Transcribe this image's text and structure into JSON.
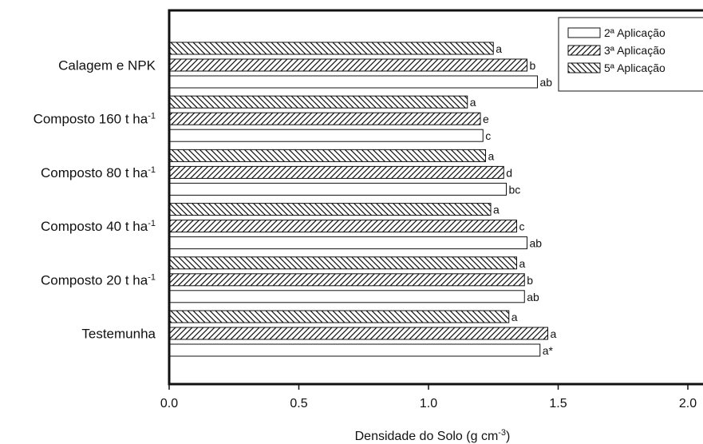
{
  "chart_data": {
    "type": "bar",
    "orientation": "horizontal",
    "categories": [
      {
        "text": "Calagem e NPK",
        "sup": ""
      },
      {
        "text": "Composto 160 t ha",
        "sup": "-1"
      },
      {
        "text": "Composto 80 t ha",
        "sup": "-1"
      },
      {
        "text": "Composto 40 t ha",
        "sup": "-1"
      },
      {
        "text": "Composto 20 t ha",
        "sup": "-1"
      },
      {
        "text": "Testemunha",
        "sup": ""
      }
    ],
    "series": [
      {
        "name": "5ª Aplicação",
        "pattern": "backslash",
        "values": [
          1.25,
          1.15,
          1.22,
          1.24,
          1.34,
          1.31
        ],
        "labels": [
          "a",
          "a",
          "a",
          "a",
          "a",
          "a"
        ]
      },
      {
        "name": "3ª Aplicação",
        "pattern": "slash",
        "values": [
          1.38,
          1.2,
          1.29,
          1.34,
          1.37,
          1.46
        ],
        "labels": [
          "b",
          "e",
          "d",
          "c",
          "b",
          "a"
        ]
      },
      {
        "name": "2ª Aplicação",
        "pattern": "none",
        "values": [
          1.42,
          1.21,
          1.3,
          1.38,
          1.37,
          1.43
        ],
        "labels": [
          "ab",
          "c",
          "bc",
          "ab",
          "ab",
          "a*"
        ]
      }
    ],
    "legend_order": [
      "2ª Aplicação",
      "3ª Aplicação",
      "5ª Aplicação"
    ],
    "legend_position": "top-right",
    "xlim": [
      0.0,
      2.0
    ],
    "xticks": [
      "0.0",
      "0.5",
      "1.0",
      "1.5",
      "2.0"
    ],
    "xlabel": {
      "text": "Densidade do Solo (g cm",
      "sup": "-3",
      "suffix": ")"
    },
    "ylabel": "",
    "title": "",
    "grid": false
  }
}
